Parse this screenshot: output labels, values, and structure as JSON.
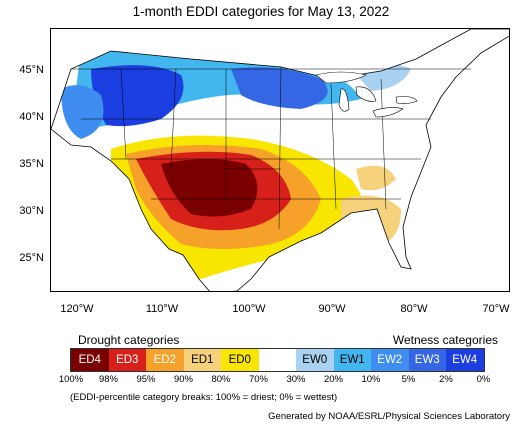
{
  "title": "1-month EDDI categories for May 13, 2022",
  "lat_labels": [
    "45°N",
    "40°N",
    "35°N",
    "30°N",
    "25°N"
  ],
  "lon_labels": [
    "120°W",
    "110°W",
    "100°W",
    "90°W",
    "80°W",
    "70°W"
  ],
  "legend": {
    "drought_title": "Drought categories",
    "wetness_title": "Wetness categories",
    "categories": [
      {
        "label": "ED4",
        "color": "#7a0000",
        "text_color": "#ffffff"
      },
      {
        "label": "ED3",
        "color": "#d8201a",
        "text_color": "#ffffff"
      },
      {
        "label": "ED2",
        "color": "#f5a12a",
        "text_color": "#ffffff"
      },
      {
        "label": "ED1",
        "color": "#f7d27c",
        "text_color": "#000000"
      },
      {
        "label": "ED0",
        "color": "#f8e600",
        "text_color": "#000000"
      },
      {
        "label": "",
        "color": "#ffffff",
        "text_color": "#000000"
      },
      {
        "label": "EW0",
        "color": "#a9d2f2",
        "text_color": "#000000"
      },
      {
        "label": "EW1",
        "color": "#42b6ee",
        "text_color": "#000000"
      },
      {
        "label": "EW2",
        "color": "#3f8df0",
        "text_color": "#ffffff"
      },
      {
        "label": "EW3",
        "color": "#3566e3",
        "text_color": "#ffffff"
      },
      {
        "label": "EW4",
        "color": "#1b3ee0",
        "text_color": "#ffffff"
      }
    ],
    "percentiles": [
      "100%",
      "98%",
      "95%",
      "90%",
      "80%",
      "70%",
      "30%",
      "20%",
      "10%",
      "5%",
      "2%",
      "0%"
    ]
  },
  "note": "(EDDI-percentile category breaks: 100% = driest; 0% = wettest)",
  "credit": "Generated by NOAA/ESRL/Physical Sciences Laboratory",
  "colors": {
    "ocean": "#ffffff",
    "land_background": "#ffffff",
    "boundary": "#000000"
  }
}
